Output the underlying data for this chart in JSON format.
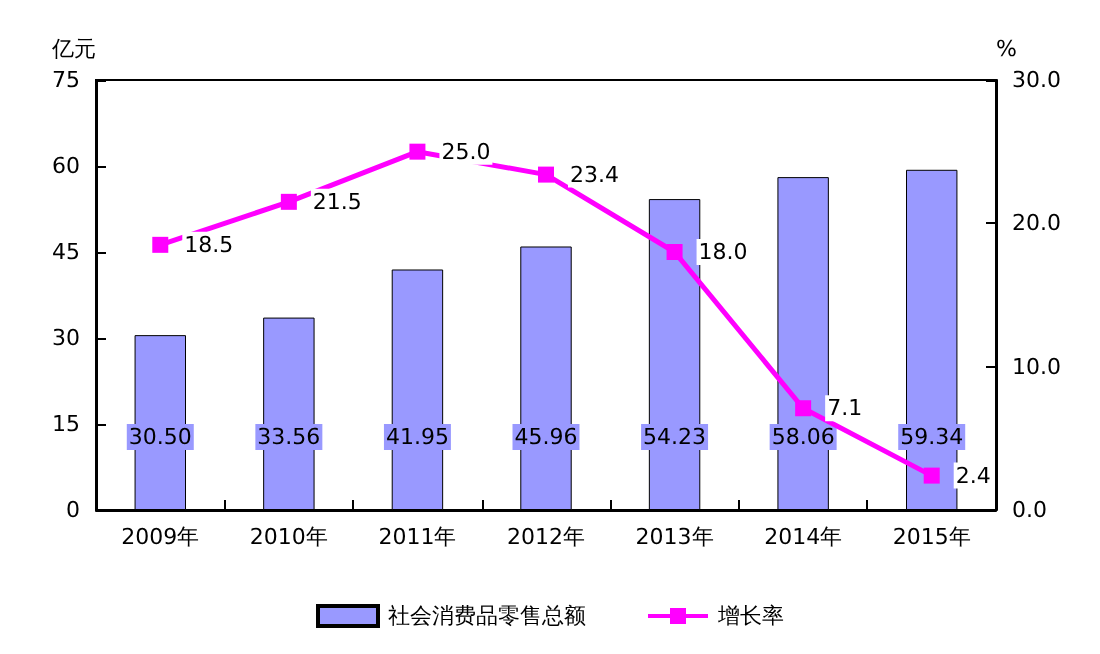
{
  "chart_data": {
    "type": "bar",
    "ylabel": "亿元",
    "y2label": "%",
    "categories": [
      "2009年",
      "2010年",
      "2011年",
      "2012年",
      "2013年",
      "2014年",
      "2015年"
    ],
    "series": [
      {
        "name": "社会消费品零售总额",
        "color": "#9999ff",
        "values": [
          30.5,
          33.56,
          41.95,
          45.96,
          54.23,
          58.06,
          59.34
        ],
        "value_labels": [
          "30.50",
          "33.56",
          "41.95",
          "45.96",
          "54.23",
          "58.06",
          "59.34"
        ]
      },
      {
        "name": "增长率",
        "type": "line",
        "axis": "y2",
        "color": "#ff00ff",
        "marker": "square",
        "values": [
          18.5,
          21.5,
          25.0,
          23.4,
          18.0,
          7.1,
          2.4
        ],
        "value_labels": [
          "18.5",
          "21.5",
          "25.0",
          "23.4",
          "18.0",
          "7.1",
          "2.4"
        ]
      }
    ],
    "ylim": [
      0,
      75
    ],
    "yticks": [
      0,
      15,
      30,
      45,
      60,
      75
    ],
    "y2lim": [
      0,
      30
    ],
    "y2ticks": [
      {
        "value": 0,
        "label": "0.0"
      },
      {
        "value": 10,
        "label": "10.0"
      },
      {
        "value": 20,
        "label": "20.0"
      },
      {
        "value": 30,
        "label": "30.0"
      }
    ],
    "grid": false,
    "legend": "bottom"
  }
}
